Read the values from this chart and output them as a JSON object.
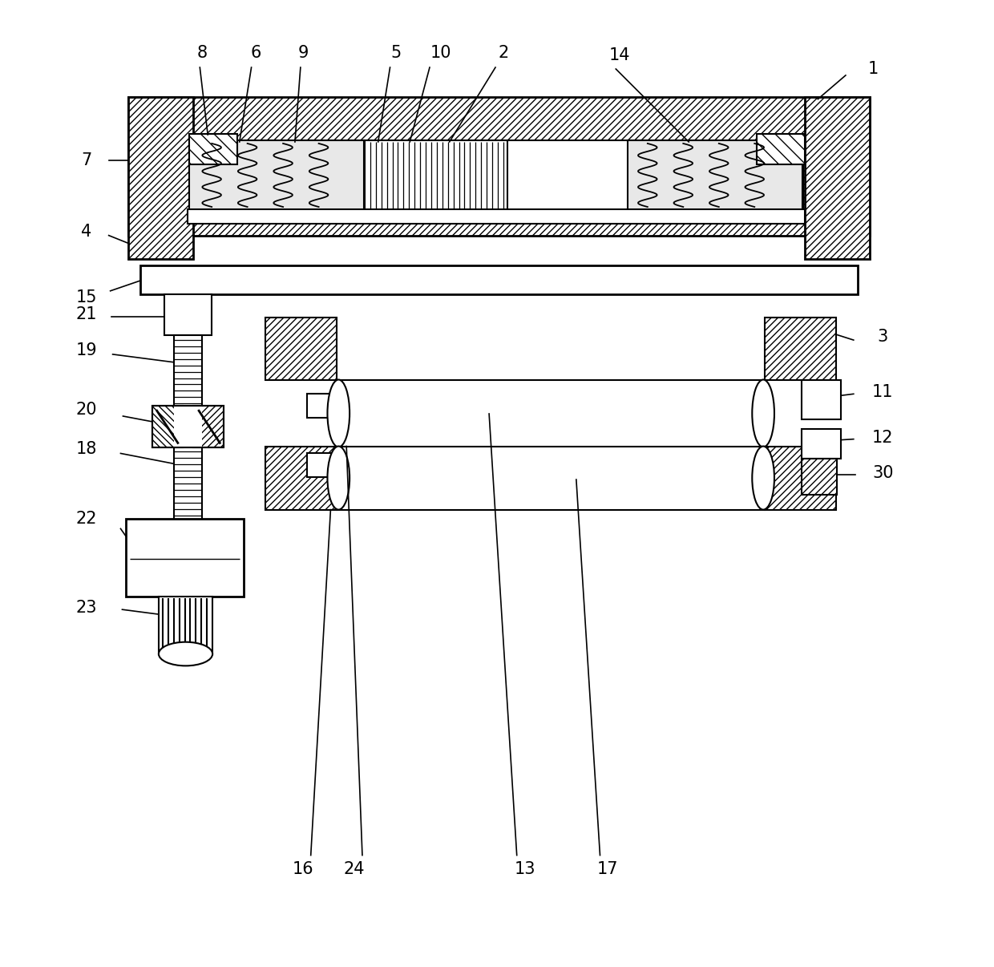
{
  "bg_color": "#ffffff",
  "fig_width": 12.4,
  "fig_height": 12.06,
  "dpi": 100,
  "xlim": [
    0,
    1240
  ],
  "ylim": [
    0,
    1206
  ],
  "label_fontsize": 15
}
